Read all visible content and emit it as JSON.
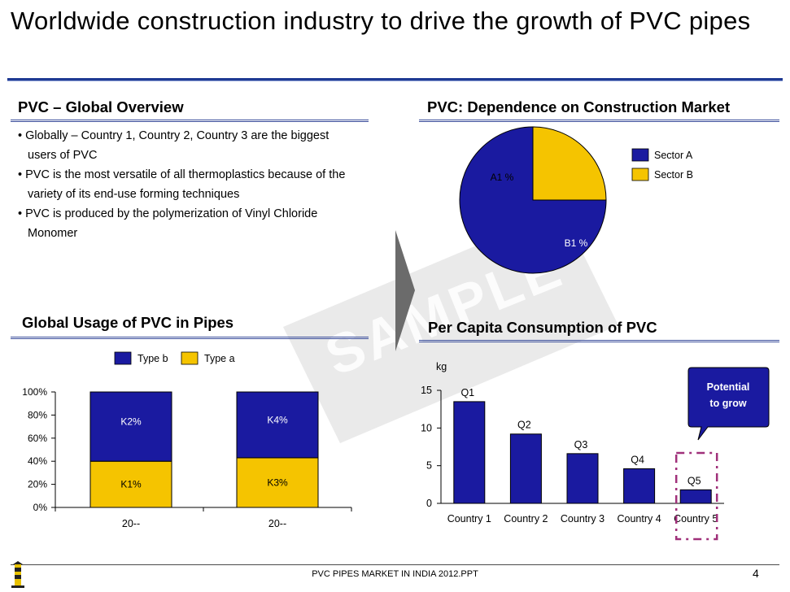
{
  "title": "Worldwide construction industry to drive the growth of PVC pipes",
  "sections": {
    "overview": "PVC – Global Overview",
    "dependence": "PVC: Dependence on Construction Market",
    "usage": "Global Usage of PVC in Pipes",
    "per_capita": "Per Capita Consumption of PVC"
  },
  "bullets": [
    "Globally – Country 1, Country 2, Country 3 are the biggest users of PVC",
    "PVC is the most versatile of all thermoplastics because of the variety of its end-use forming techniques",
    "PVC is produced by the polymerization of Vinyl Chloride Monomer"
  ],
  "watermark": "SAMPLE",
  "footer": "PVC PIPES MARKET IN INDIA 2012.PPT",
  "page_number": "4",
  "colors": {
    "blue": "#1a1aa0",
    "yellow": "#f5c400",
    "accent_purple": "#a0307a",
    "title_rule": "#1f3a93"
  },
  "chart_data": [
    {
      "type": "pie",
      "slices": [
        {
          "label": "A1 %",
          "legend": "Sector B",
          "value": 25,
          "color": "#f5c400"
        },
        {
          "label": "B1 %",
          "legend": "Sector A",
          "value": 75,
          "color": "#1a1aa0"
        }
      ],
      "legend_entries": [
        "Sector A",
        "Sector B"
      ],
      "legend_position": "top-right"
    },
    {
      "type": "bar",
      "stacked": true,
      "categories": [
        "20--",
        "20--"
      ],
      "series": [
        {
          "name": "Type a",
          "values": [
            40,
            43
          ],
          "labels": [
            "K1%",
            "K3%"
          ],
          "color": "#f5c400"
        },
        {
          "name": "Type b",
          "values": [
            60,
            57
          ],
          "labels": [
            "K2%",
            "K4%"
          ],
          "color": "#1a1aa0"
        }
      ],
      "yticks": [
        "0%",
        "20%",
        "40%",
        "60%",
        "80%",
        "100%"
      ],
      "ylim": [
        0,
        100
      ],
      "legend_position": "top"
    },
    {
      "type": "bar",
      "categories": [
        "Country 1",
        "Country 2",
        "Country 3",
        "Country 4",
        "Country 5"
      ],
      "values": [
        13.5,
        9.2,
        6.6,
        4.6,
        1.8
      ],
      "labels": [
        "Q1",
        "Q2",
        "Q3",
        "Q4",
        "Q5"
      ],
      "ylabel": "kg",
      "yticks": [
        0,
        5,
        10,
        15
      ],
      "ylim": [
        0,
        15
      ],
      "callout": "Potential to grow"
    }
  ]
}
